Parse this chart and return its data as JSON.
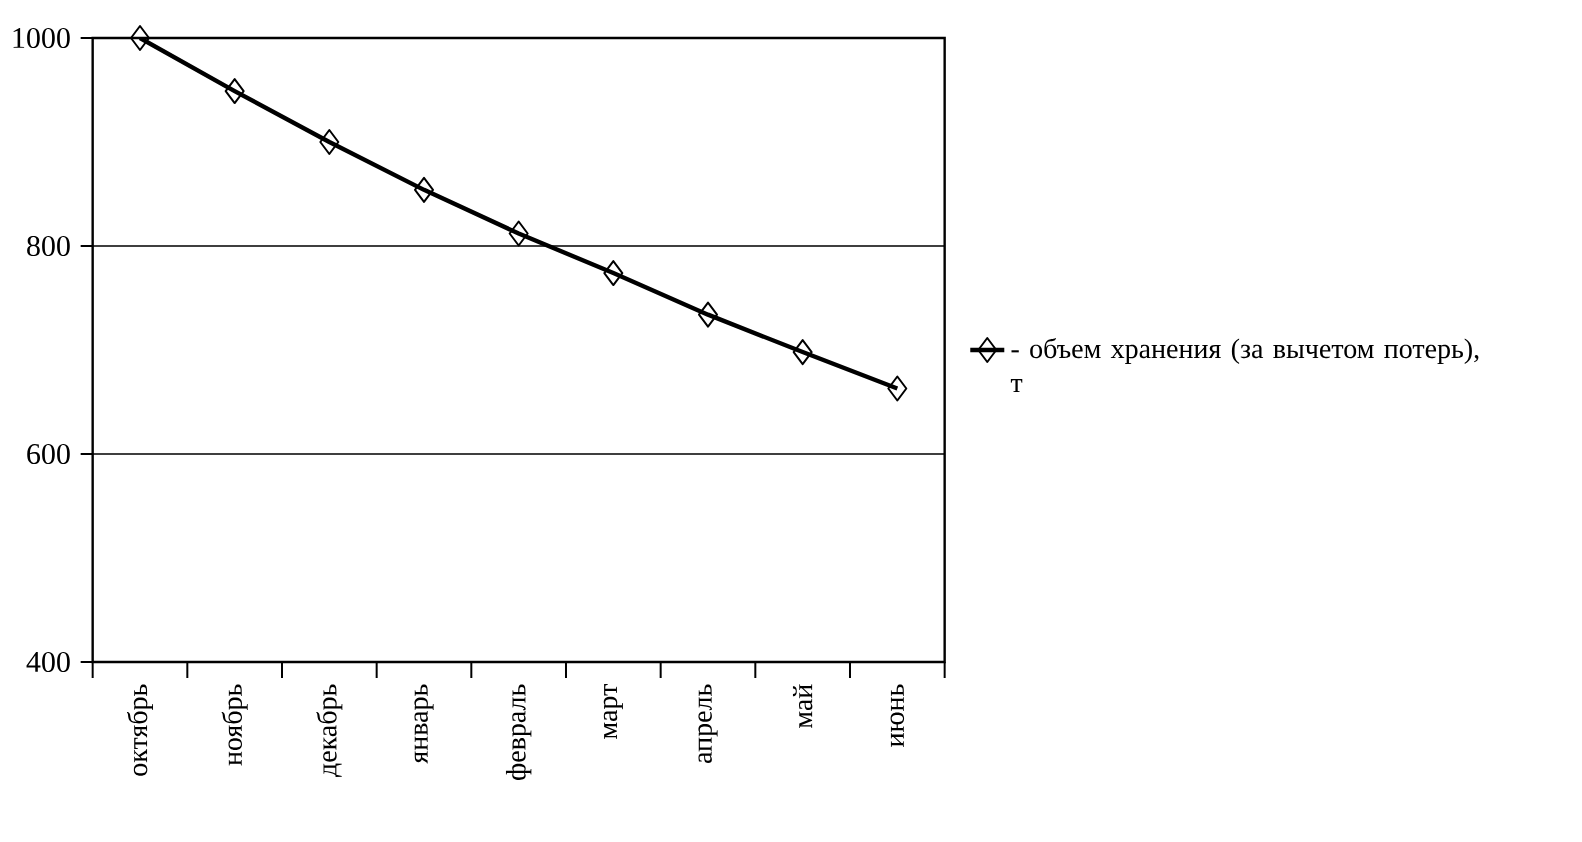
{
  "chart_data": {
    "type": "line",
    "categories": [
      "октябрь",
      "ноябрь",
      "декабрь",
      "январь",
      "февраль",
      "март",
      "апрель",
      "май",
      "июнь"
    ],
    "series": [
      {
        "name": "- объем хранения (за вычетом потерь), т",
        "color": "#000000",
        "values": [
          1000,
          949,
          900,
          854,
          812,
          774,
          734,
          698,
          663
        ]
      }
    ],
    "ylim": [
      400,
      1000
    ],
    "yticks": [
      400,
      600,
      800,
      1000
    ],
    "grid": "y",
    "legend": "right",
    "marker": "diamond",
    "line_style": "solid"
  }
}
